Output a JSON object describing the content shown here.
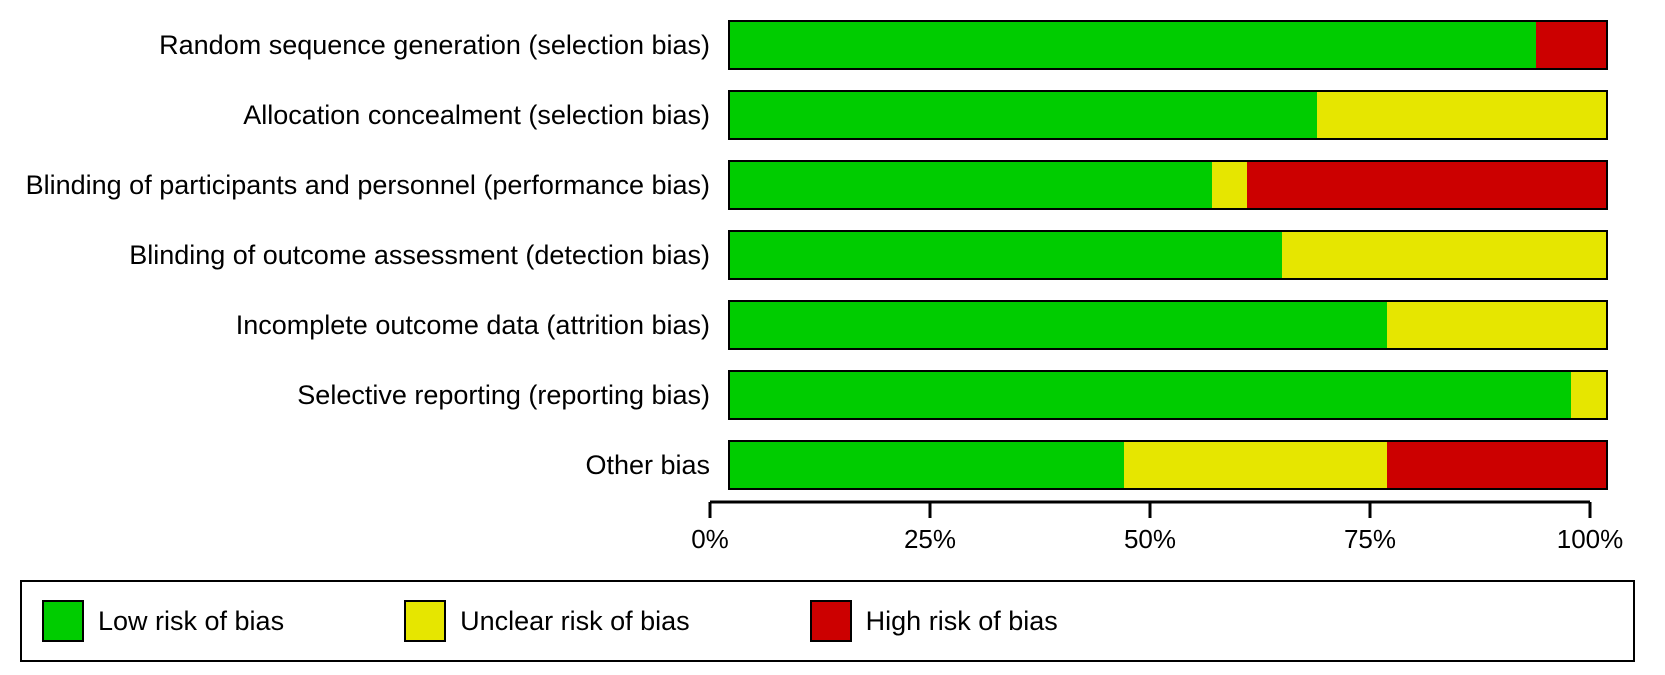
{
  "chart": {
    "type": "stacked-bar-horizontal",
    "background_color": "#ffffff",
    "bar_border_color": "#000000",
    "bar_border_width": 2,
    "label_fontsize": 27,
    "axis": {
      "xlim": [
        0,
        100
      ],
      "ticks": [
        0,
        25,
        50,
        75,
        100
      ],
      "tick_labels": [
        "0%",
        "25%",
        "50%",
        "75%",
        "100%"
      ],
      "tick_fontsize": 26,
      "axis_color": "#000000"
    },
    "colors": {
      "low": "#00cc00",
      "unclear": "#e6e600",
      "high": "#cc0000"
    },
    "categories": [
      {
        "label": "Random sequence generation (selection bias)",
        "low": 92,
        "unclear": 0,
        "high": 8
      },
      {
        "label": "Allocation concealment (selection bias)",
        "low": 67,
        "unclear": 33,
        "high": 0
      },
      {
        "label": "Blinding of participants and personnel (performance bias)",
        "low": 55,
        "unclear": 4,
        "high": 41
      },
      {
        "label": "Blinding of outcome assessment (detection bias)",
        "low": 63,
        "unclear": 37,
        "high": 0
      },
      {
        "label": "Incomplete outcome data (attrition bias)",
        "low": 75,
        "unclear": 25,
        "high": 0
      },
      {
        "label": "Selective reporting (reporting bias)",
        "low": 96,
        "unclear": 4,
        "high": 0
      },
      {
        "label": "Other bias",
        "low": 45,
        "unclear": 30,
        "high": 25
      }
    ]
  },
  "legend": {
    "border_color": "#000000",
    "items": [
      {
        "key": "low",
        "label": "Low risk of bias",
        "color": "#00cc00"
      },
      {
        "key": "unclear",
        "label": "Unclear risk of bias",
        "color": "#e6e600"
      },
      {
        "key": "high",
        "label": "High risk of bias",
        "color": "#cc0000"
      }
    ]
  }
}
